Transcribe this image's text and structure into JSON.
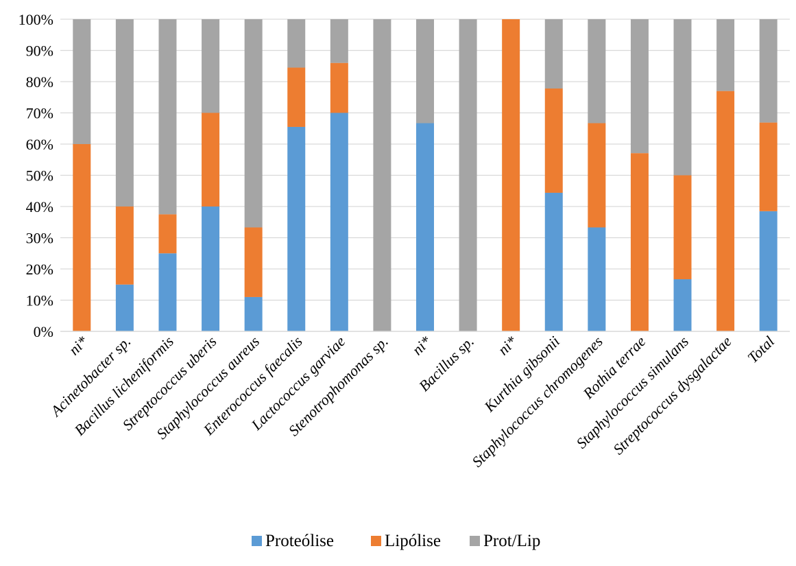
{
  "chart_data": {
    "type": "bar",
    "stacked": true,
    "normalized": true,
    "categories": [
      "ni*",
      "Acinetobacter sp.",
      "Bacillus licheniformis",
      "Streptococcus uberis",
      "Staphylococcus aureus",
      "Enterococcus faecalis",
      "Lactococcus garviae",
      "Stenotrophomonas sp.",
      "ni*",
      "Bacillus sp.",
      "ni*",
      "Kurthia gibsonii",
      "Staphylococcus chromogenes",
      "Rothia terrae",
      "Staphylococcus simulans",
      "Streptococcus dysgalactae",
      "Total"
    ],
    "series": [
      {
        "name": "Proteólise",
        "color": "#5B9BD5",
        "values": [
          0,
          15,
          25,
          40,
          11,
          65.5,
          70,
          0,
          66.7,
          0,
          0,
          44.4,
          33.3,
          0,
          16.7,
          0,
          38.5
        ]
      },
      {
        "name": "Lipólise",
        "color": "#ED7D31",
        "values": [
          60,
          25,
          12.5,
          30,
          22.3,
          19,
          16,
          0,
          0,
          0,
          100,
          33.4,
          33.4,
          57.1,
          33.3,
          77,
          28.4
        ]
      },
      {
        "name": "Prot/Lip",
        "color": "#A5A5A5",
        "values": [
          40,
          60,
          62.5,
          30,
          66.7,
          15.5,
          14,
          100,
          33.3,
          100,
          0,
          22.2,
          33.3,
          42.9,
          50,
          23,
          33.1
        ]
      }
    ],
    "y_ticks": [
      "0%",
      "10%",
      "20%",
      "30%",
      "40%",
      "50%",
      "60%",
      "70%",
      "80%",
      "90%",
      "100%"
    ],
    "ylim": [
      0,
      100
    ],
    "grid": true,
    "legend_position": "bottom",
    "title": "",
    "xlabel": "",
    "ylabel": ""
  }
}
